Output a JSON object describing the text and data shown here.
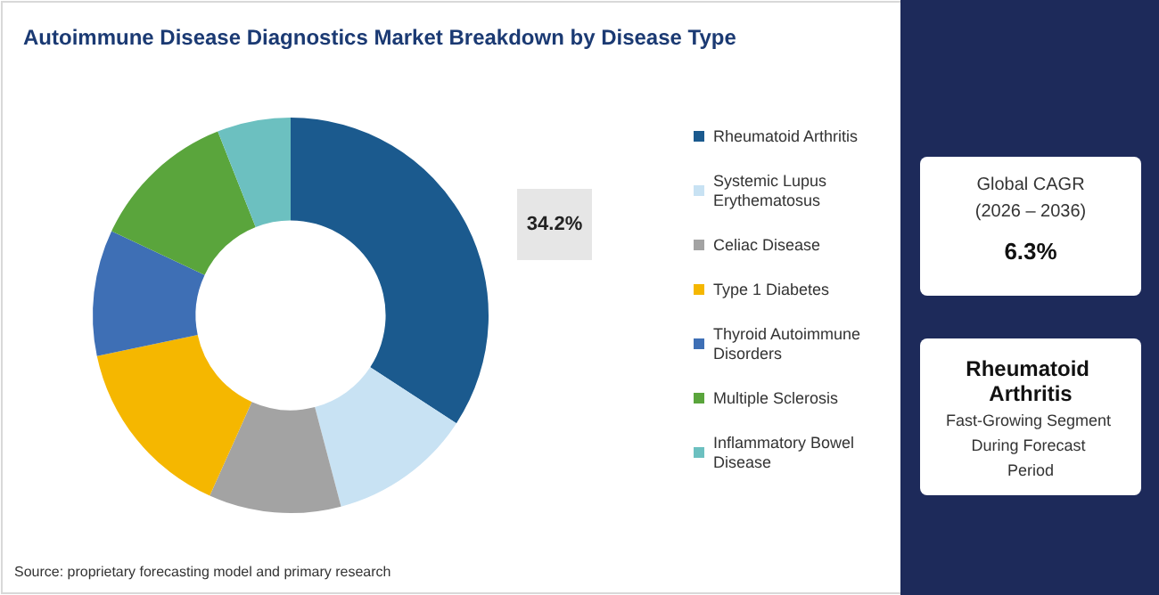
{
  "chart_data": {
    "type": "donut",
    "title": "Autoimmune Disease Diagnostics Market Breakdown by Disease Type",
    "categories": [
      "Rheumatoid Arthritis",
      "Systemic Lupus Erythematosus",
      "Celiac Disease",
      "Type 1 Diabetes",
      "Thyroid Autoimmune Disorders",
      "Multiple Sclerosis",
      "Inflammatory Bowel Disease"
    ],
    "values": [
      34.2,
      11.7,
      10.8,
      15,
      10.3,
      12,
      6
    ],
    "value_labels": [
      "34.2%",
      null,
      null,
      null,
      null,
      null,
      null
    ],
    "colors": [
      "#1b5a8e",
      "#c8e2f3",
      "#a3a3a3",
      "#f5b700",
      "#3e6fb5",
      "#5aa53c",
      "#6cc0c0"
    ],
    "legend": "right",
    "annotations": [
      "Global CAGR",
      "(2026 – 2036)",
      "6.3%",
      "Rheumatoid Arthritis",
      "Fast-Growing Segment During Forecast Period",
      "Source: proprietary forecasting model and primary research"
    ]
  }
}
